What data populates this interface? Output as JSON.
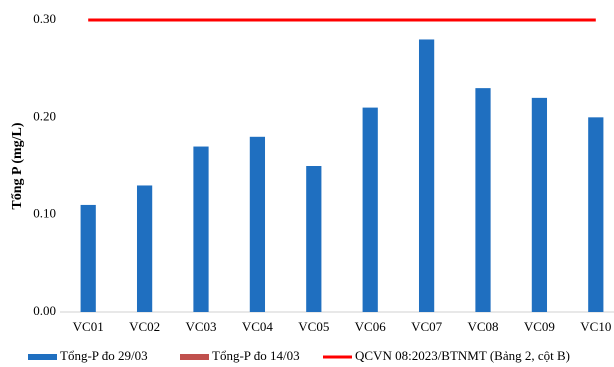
{
  "chart_data": {
    "type": "bar",
    "y_label": "Tổng P (mg/L)",
    "categories": [
      "VC01",
      "VC02",
      "VC03",
      "VC04",
      "VC05",
      "VC06",
      "VC07",
      "VC08",
      "VC09",
      "VC10"
    ],
    "series": [
      {
        "name": "Tổng-P đo 29/03",
        "color": "#1f6fc0",
        "type": "bar",
        "values": [
          0.11,
          0.13,
          0.17,
          0.18,
          0.15,
          0.21,
          0.28,
          0.23,
          0.22,
          0.2
        ]
      },
      {
        "name": "Tổng-P đo 14/03",
        "color": "#c0504d",
        "type": "bar",
        "values": [
          null,
          null,
          null,
          null,
          null,
          null,
          null,
          null,
          null,
          null
        ]
      },
      {
        "name": "QCVN 08:2023/BTNMT (Bảng 2, cột B)",
        "color": "#ff0000",
        "type": "line",
        "values": [
          0.3,
          0.3,
          0.3,
          0.3,
          0.3,
          0.3,
          0.3,
          0.3,
          0.3,
          0.3
        ]
      }
    ],
    "ylim": [
      0,
      0.3
    ],
    "yticks": [
      {
        "value": 0,
        "label": "0.00"
      },
      {
        "value": 0.1,
        "label": "0.10"
      },
      {
        "value": 0.2,
        "label": "0.20"
      },
      {
        "value": 0.3,
        "label": "0.30"
      }
    ],
    "grid": false
  }
}
